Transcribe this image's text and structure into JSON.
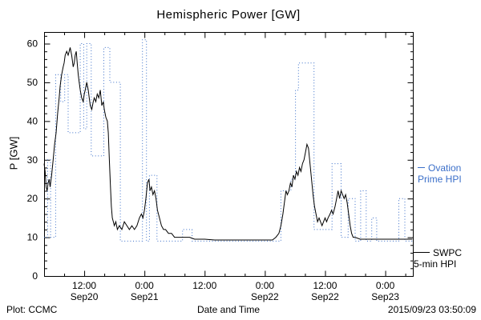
{
  "footer": {
    "left": "Plot: CCMC",
    "right": "2015/09/23 03:50:09"
  },
  "chart_data": {
    "type": "line",
    "title": "Hemispheric Power [GW]",
    "xlabel": "Date and Time",
    "ylabel": "P [GW]",
    "xlim": [
      0,
      73.5
    ],
    "ylim": [
      0,
      63
    ],
    "x_axis_note": "x values are hours across the plotted window; tick positions listed in xticks",
    "grid": false,
    "legend_position": "right-outside",
    "yticks": [
      0,
      10,
      20,
      30,
      40,
      50,
      60
    ],
    "xticks": [
      {
        "t": 8,
        "time": "12:00",
        "date": "Sep20"
      },
      {
        "t": 20,
        "time": "0:00",
        "date": "Sep21"
      },
      {
        "t": 32,
        "time": "12:00",
        "date": ""
      },
      {
        "t": 44,
        "time": "0:00",
        "date": "Sep22"
      },
      {
        "t": 56,
        "time": "12:00",
        "date": "Sep22"
      },
      {
        "t": 68,
        "time": "0:00",
        "date": "Sep23"
      }
    ],
    "series": [
      {
        "name": "Ovation Prime HPI",
        "color": "#3B6FC9",
        "line_style": "dotted",
        "draw": "step",
        "points": [
          [
            0,
            10
          ],
          [
            0.7,
            30
          ],
          [
            1.3,
            10
          ],
          [
            2.3,
            52
          ],
          [
            3.3,
            45
          ],
          [
            4.1,
            52
          ],
          [
            4.8,
            37
          ],
          [
            7.2,
            60
          ],
          [
            7.9,
            38
          ],
          [
            8.5,
            60
          ],
          [
            9.4,
            31
          ],
          [
            11.9,
            59
          ],
          [
            13.1,
            50
          ],
          [
            15.2,
            9
          ],
          [
            19.6,
            61
          ],
          [
            20.4,
            9
          ],
          [
            21.0,
            26
          ],
          [
            22.5,
            9
          ],
          [
            27.6,
            12
          ],
          [
            29.5,
            9
          ],
          [
            47.2,
            22
          ],
          [
            49.2,
            25
          ],
          [
            50.1,
            48
          ],
          [
            50.7,
            55
          ],
          [
            53.8,
            12
          ],
          [
            57.4,
            29
          ],
          [
            59.2,
            10
          ],
          [
            60.6,
            20
          ],
          [
            62.0,
            9
          ],
          [
            63.1,
            22
          ],
          [
            64.2,
            9
          ],
          [
            65.3,
            15
          ],
          [
            66.3,
            9
          ],
          [
            70.7,
            20
          ],
          [
            71.9,
            9
          ],
          [
            73.4,
            9
          ]
        ]
      },
      {
        "name": "SWPC 5-min HPI",
        "color": "#000000",
        "line_style": "solid",
        "draw": "linear",
        "points": [
          [
            0,
            29
          ],
          [
            0.2,
            27
          ],
          [
            0.4,
            23
          ],
          [
            0.6,
            22
          ],
          [
            0.8,
            24
          ],
          [
            1,
            25
          ],
          [
            1.2,
            23
          ],
          [
            1.5,
            26
          ],
          [
            1.8,
            30
          ],
          [
            2.1,
            34
          ],
          [
            2.4,
            37
          ],
          [
            2.7,
            42
          ],
          [
            3,
            46
          ],
          [
            3.2,
            49
          ],
          [
            3.5,
            52
          ],
          [
            3.8,
            54
          ],
          [
            4,
            55
          ],
          [
            4.2,
            57
          ],
          [
            4.5,
            58
          ],
          [
            4.8,
            57
          ],
          [
            5,
            58
          ],
          [
            5.2,
            59
          ],
          [
            5.5,
            57
          ],
          [
            5.8,
            54
          ],
          [
            6,
            55
          ],
          [
            6.2,
            57
          ],
          [
            6.4,
            58
          ],
          [
            6.6,
            55
          ],
          [
            6.8,
            52
          ],
          [
            7,
            50
          ],
          [
            7.2,
            48
          ],
          [
            7.5,
            46
          ],
          [
            7.8,
            45
          ],
          [
            8,
            47
          ],
          [
            8.2,
            48
          ],
          [
            8.5,
            50
          ],
          [
            8.8,
            48
          ],
          [
            9,
            46
          ],
          [
            9.2,
            44
          ],
          [
            9.5,
            43
          ],
          [
            9.8,
            45
          ],
          [
            10,
            46
          ],
          [
            10.3,
            45
          ],
          [
            10.6,
            47
          ],
          [
            10.9,
            46
          ],
          [
            11.2,
            48
          ],
          [
            11.5,
            44
          ],
          [
            11.8,
            45
          ],
          [
            12,
            43
          ],
          [
            12.3,
            41
          ],
          [
            12.6,
            40
          ],
          [
            12.8,
            37
          ],
          [
            13,
            30
          ],
          [
            13.2,
            24
          ],
          [
            13.4,
            18
          ],
          [
            13.6,
            15
          ],
          [
            13.8,
            14
          ],
          [
            14,
            13
          ],
          [
            14.3,
            14
          ],
          [
            14.6,
            12
          ],
          [
            15,
            13
          ],
          [
            15.5,
            12
          ],
          [
            16,
            14
          ],
          [
            16.5,
            13
          ],
          [
            17,
            12
          ],
          [
            17.5,
            13
          ],
          [
            18,
            12
          ],
          [
            18.5,
            13
          ],
          [
            19,
            15
          ],
          [
            19.4,
            16
          ],
          [
            19.7,
            15
          ],
          [
            20,
            17
          ],
          [
            20.3,
            20
          ],
          [
            20.6,
            24
          ],
          [
            20.9,
            25
          ],
          [
            21.1,
            22
          ],
          [
            21.4,
            23
          ],
          [
            21.7,
            21
          ],
          [
            22,
            22
          ],
          [
            22.3,
            20
          ],
          [
            22.6,
            17
          ],
          [
            23,
            15
          ],
          [
            23.4,
            13
          ],
          [
            23.8,
            12
          ],
          [
            24.2,
            12
          ],
          [
            24.8,
            11
          ],
          [
            25.4,
            11
          ],
          [
            26,
            10
          ],
          [
            27,
            10
          ],
          [
            28,
            10
          ],
          [
            29,
            10
          ],
          [
            30,
            9.5
          ],
          [
            32,
            9.5
          ],
          [
            34,
            9.3
          ],
          [
            38,
            9.3
          ],
          [
            42,
            9.3
          ],
          [
            45.5,
            9.3
          ],
          [
            46.2,
            10
          ],
          [
            46.8,
            11
          ],
          [
            47.2,
            13
          ],
          [
            47.6,
            16
          ],
          [
            47.9,
            19
          ],
          [
            48.2,
            22
          ],
          [
            48.5,
            21
          ],
          [
            48.8,
            22
          ],
          [
            49.1,
            24
          ],
          [
            49.4,
            23
          ],
          [
            49.7,
            26
          ],
          [
            50,
            25
          ],
          [
            50.3,
            27
          ],
          [
            50.6,
            26
          ],
          [
            50.9,
            28
          ],
          [
            51.2,
            27
          ],
          [
            51.5,
            29
          ],
          [
            51.8,
            30
          ],
          [
            52.1,
            32
          ],
          [
            52.4,
            34
          ],
          [
            52.7,
            33
          ],
          [
            53,
            29
          ],
          [
            53.3,
            25
          ],
          [
            53.6,
            21
          ],
          [
            53.9,
            18
          ],
          [
            54.2,
            16
          ],
          [
            54.5,
            14
          ],
          [
            54.8,
            15
          ],
          [
            55.1,
            14
          ],
          [
            55.4,
            13
          ],
          [
            55.7,
            14
          ],
          [
            56,
            15
          ],
          [
            56.3,
            14
          ],
          [
            56.6,
            15
          ],
          [
            57,
            16
          ],
          [
            57.3,
            17
          ],
          [
            57.6,
            16
          ],
          [
            58,
            18
          ],
          [
            58.3,
            20
          ],
          [
            58.6,
            22
          ],
          [
            58.9,
            20
          ],
          [
            59.2,
            22
          ],
          [
            59.5,
            21
          ],
          [
            59.8,
            20
          ],
          [
            60.1,
            21
          ],
          [
            60.4,
            19
          ],
          [
            60.7,
            16
          ],
          [
            61,
            13
          ],
          [
            61.3,
            11
          ],
          [
            61.6,
            10
          ],
          [
            62,
            10
          ],
          [
            63,
            9.5
          ],
          [
            65,
            9.5
          ],
          [
            68,
            9.5
          ],
          [
            71,
            9.5
          ],
          [
            73.4,
            9.5
          ]
        ]
      }
    ],
    "legend": [
      {
        "line1": "Ovation",
        "line2": "Prime HPI",
        "color": "#3B6FC9"
      },
      {
        "line1": "SWPC",
        "line2": "5-min HPI",
        "color": "#000000"
      }
    ]
  }
}
